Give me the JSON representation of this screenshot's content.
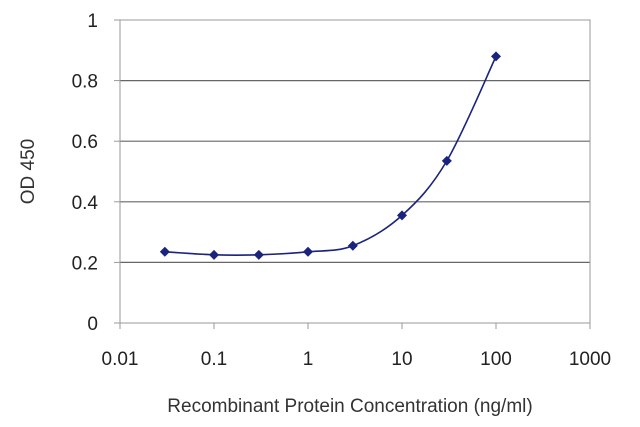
{
  "chart_data": {
    "type": "line",
    "xlabel": "Recombinant Protein Concentration (ng/ml)",
    "ylabel": "OD 450",
    "x_scale": "log",
    "xlim": [
      0.01,
      1000
    ],
    "ylim": [
      0,
      1
    ],
    "x_ticks": [
      0.01,
      0.1,
      1,
      10,
      100,
      1000
    ],
    "x_tick_labels": [
      "0.01",
      "0.1",
      "1",
      "10",
      "100",
      "1000"
    ],
    "y_ticks": [
      0,
      0.2,
      0.4,
      0.6,
      0.8,
      1
    ],
    "y_tick_labels": [
      "0",
      "0.2",
      "0.4",
      "0.6",
      "0.8",
      "1"
    ],
    "grid": "horizontal",
    "legend": "none",
    "series": [
      {
        "x": [
          0.03,
          0.1,
          0.3,
          1,
          3,
          10,
          30,
          100
        ],
        "y": [
          0.235,
          0.225,
          0.225,
          0.235,
          0.255,
          0.355,
          0.535,
          0.88
        ]
      }
    ],
    "colors": {
      "series": "#1a237e",
      "grid": "#666666",
      "frame": "#999999"
    }
  }
}
